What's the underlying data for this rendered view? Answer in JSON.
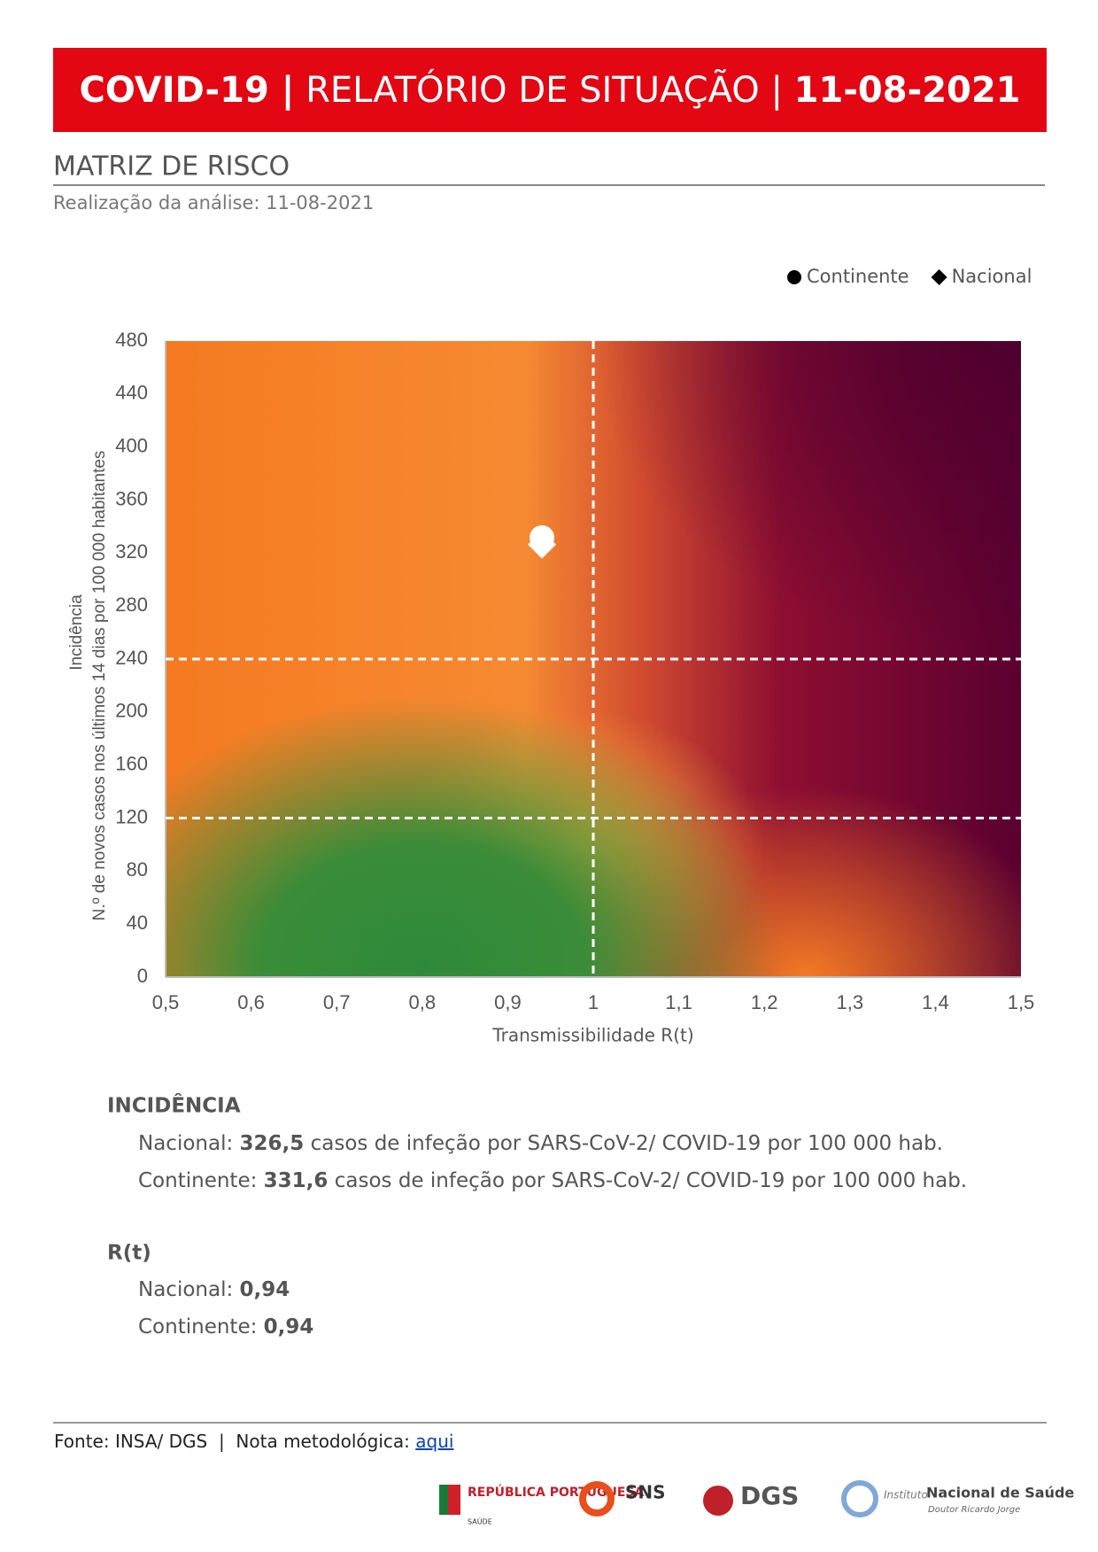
{
  "header": {
    "parts": [
      "COVID-19 |",
      "RELATÓRIO DE SITUAÇÃO |",
      "11-08-2021"
    ]
  },
  "section_title": "MATRIZ DE RISCO",
  "subtitle": "Realização da análise: 11-08-2021",
  "chart_data": {
    "type": "scatter",
    "x_label": "Transmissibilidade R(t)",
    "y_label": [
      "Incidência",
      "N.º de novos casos nos últimos 14 dias por 100 000 habitantes"
    ],
    "xlim": [
      0.5,
      1.5
    ],
    "xticks": [
      {
        "value": 0.5,
        "label": "0,5"
      },
      {
        "value": 0.6,
        "label": "0,6"
      },
      {
        "value": 0.7,
        "label": "0,7"
      },
      {
        "value": 0.8,
        "label": "0,8"
      },
      {
        "value": 0.9,
        "label": "0,9"
      },
      1,
      {
        "value": 1.1,
        "label": "1,1"
      },
      {
        "value": 1.2,
        "label": "1,2"
      },
      {
        "value": 1.3,
        "label": "1,3"
      },
      {
        "value": 1.4,
        "label": "1,4"
      },
      {
        "value": 1.5,
        "label": "1,5"
      }
    ],
    "ylim": [
      0,
      480
    ],
    "yticks": [
      0,
      40,
      80,
      120,
      160,
      200,
      240,
      280,
      320,
      360,
      400,
      440,
      480
    ],
    "reference_lines": {
      "x": [
        1
      ],
      "y": [
        120,
        240
      ]
    },
    "legend": "top-right",
    "series": [
      {
        "name": "Continente",
        "marker": "circle",
        "color": "#000000",
        "marker_color": "#ffffff",
        "x": [
          0.94
        ],
        "values": [
          331.6
        ]
      },
      {
        "name": "Nacional",
        "marker": "diamond",
        "color": "#000000",
        "marker_color": "#ffffff",
        "x": [
          0.94
        ],
        "values": [
          326.5
        ]
      }
    ]
  },
  "incidence": {
    "heading": "INCIDÊNCIA",
    "rows": [
      {
        "label": "Nacional:",
        "value": "326,5",
        "text": "casos de infeção por SARS-CoV-2/ COVID-19 por 100 000 hab."
      },
      {
        "label": "Continente:",
        "value": "331,6",
        "text": "casos de infeção por SARS-CoV-2/ COVID-19 por 100 000 hab."
      }
    ]
  },
  "rt": {
    "heading": "R(t)",
    "rows": [
      {
        "label": "Nacional:",
        "value": "0,94"
      },
      {
        "label": "Continente:",
        "value": "0,94"
      }
    ]
  },
  "footer": {
    "source": "Fonte: INSA/ DGS  |  Nota metodológica:",
    "link": "aqui",
    "logos": [
      "REPÚBLICA PORTUGUESA",
      "SAÚDE",
      "SNS",
      "DGS",
      "Instituto",
      "Nacional de Saúde",
      "Doutor Ricardo Jorge"
    ]
  }
}
